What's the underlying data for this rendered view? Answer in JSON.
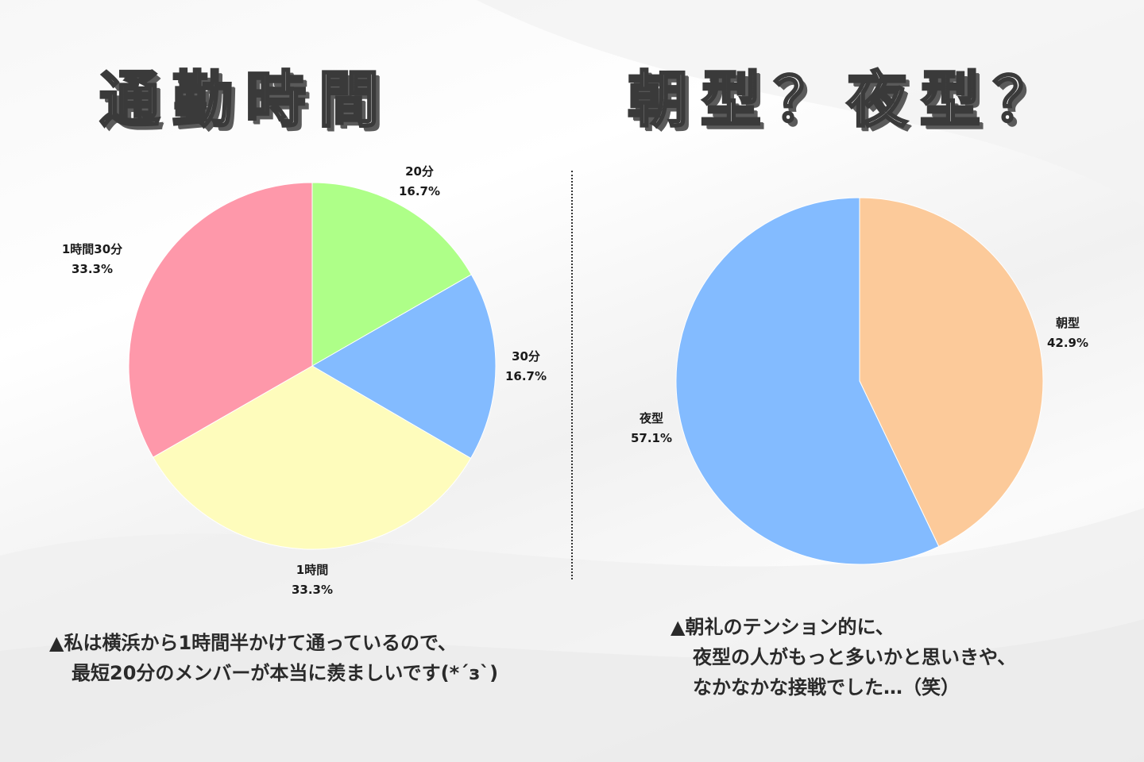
{
  "titles": {
    "left": "通勤時間",
    "right": "朝型？夜型？"
  },
  "chart_data": [
    {
      "type": "pie",
      "title": "通勤時間",
      "start": "top",
      "direction": "clockwise",
      "slices": [
        {
          "label": "20分",
          "percent_label": "16.7%",
          "value": 16.7,
          "color": "#aeff88"
        },
        {
          "label": "30分",
          "percent_label": "16.7%",
          "value": 16.7,
          "color": "#83bbff"
        },
        {
          "label": "1時間",
          "percent_label": "33.3%",
          "value": 33.3,
          "color": "#fefcbc"
        },
        {
          "label": "1時間30分",
          "percent_label": "33.3%",
          "value": 33.3,
          "color": "#fe98aa"
        }
      ]
    },
    {
      "type": "pie",
      "title": "朝型？夜型？",
      "start": "top",
      "direction": "clockwise",
      "slices": [
        {
          "label": "朝型",
          "percent_label": "42.9%",
          "value": 42.9,
          "color": "#fcca9a"
        },
        {
          "label": "夜型",
          "percent_label": "57.1%",
          "value": 57.1,
          "color": "#83bbff"
        }
      ]
    }
  ],
  "captions": {
    "left": [
      "▲私は横浜から1時間半かけて通っているので、",
      "最短20分のメンバーが本当に羨ましいです(*´з`)"
    ],
    "right": [
      "▲朝礼のテンション的に、",
      "夜型の人がもっと多いかと思いきや、",
      "なかなかな接戦でした…（笑）"
    ]
  }
}
